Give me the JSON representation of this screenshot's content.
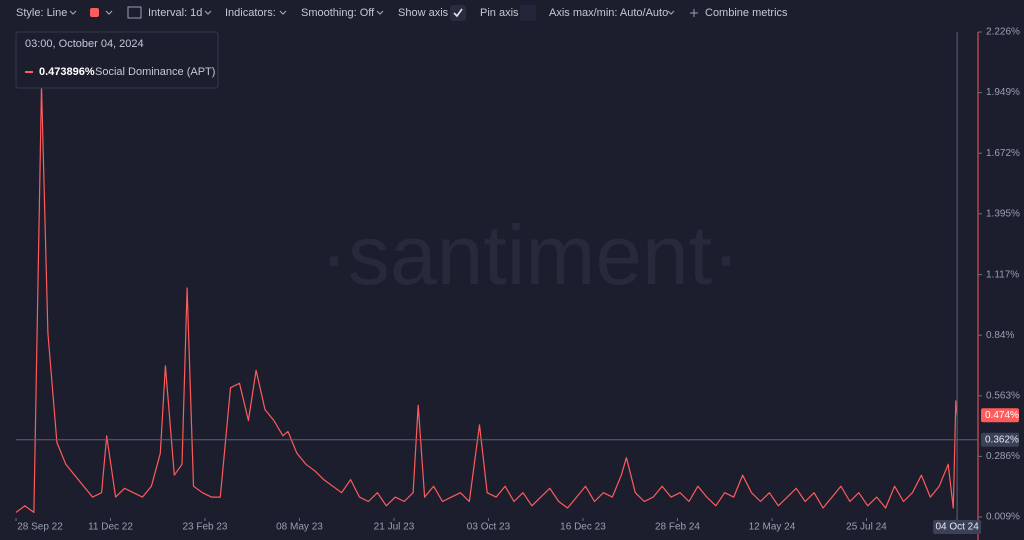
{
  "toolbar": {
    "style": "Style: Line",
    "interval": "Interval: 1d",
    "indicators": "Indicators:",
    "smoothing": "Smoothing: Off",
    "show_axis": "Show axis",
    "pin_axis": "Pin axis",
    "axis_range": "Axis max/min: Auto/Auto",
    "combine": "Combine metrics"
  },
  "chart_data": {
    "type": "line",
    "watermark": "·santiment·",
    "tooltip": {
      "title": "03:00, October 04, 2024",
      "value": 0.473896,
      "label": "0.473896%"
    },
    "x": [
      "2022-09-28",
      "2022-10-05",
      "2022-10-12",
      "2022-10-18",
      "2022-10-23",
      "2022-10-30",
      "2022-11-06",
      "2022-11-13",
      "2022-11-20",
      "2022-11-27",
      "2022-12-04",
      "2022-12-08",
      "2022-12-15",
      "2022-12-22",
      "2022-12-29",
      "2023-01-05",
      "2023-01-12",
      "2023-01-19",
      "2023-01-23",
      "2023-01-30",
      "2023-02-05",
      "2023-02-09",
      "2023-02-14",
      "2023-02-21",
      "2023-02-28",
      "2023-03-07",
      "2023-03-15",
      "2023-03-22",
      "2023-03-29",
      "2023-04-04",
      "2023-04-11",
      "2023-04-18",
      "2023-04-25",
      "2023-04-29",
      "2023-05-06",
      "2023-05-13",
      "2023-05-20",
      "2023-05-27",
      "2023-06-03",
      "2023-06-10",
      "2023-06-17",
      "2023-06-24",
      "2023-07-01",
      "2023-07-08",
      "2023-07-15",
      "2023-07-22",
      "2023-07-29",
      "2023-08-05",
      "2023-08-09",
      "2023-08-14",
      "2023-08-21",
      "2023-08-28",
      "2023-09-04",
      "2023-09-11",
      "2023-09-18",
      "2023-09-26",
      "2023-10-02",
      "2023-10-09",
      "2023-10-16",
      "2023-10-23",
      "2023-10-30",
      "2023-11-06",
      "2023-11-13",
      "2023-11-20",
      "2023-11-27",
      "2023-12-04",
      "2023-12-11",
      "2023-12-18",
      "2023-12-25",
      "2024-01-01",
      "2024-01-08",
      "2024-01-15",
      "2024-01-19",
      "2024-01-26",
      "2024-02-02",
      "2024-02-09",
      "2024-02-16",
      "2024-02-23",
      "2024-03-01",
      "2024-03-08",
      "2024-03-15",
      "2024-03-22",
      "2024-03-29",
      "2024-04-05",
      "2024-04-12",
      "2024-04-19",
      "2024-04-26",
      "2024-05-03",
      "2024-05-10",
      "2024-05-17",
      "2024-05-24",
      "2024-05-31",
      "2024-06-07",
      "2024-06-14",
      "2024-06-21",
      "2024-06-28",
      "2024-07-05",
      "2024-07-12",
      "2024-07-19",
      "2024-07-26",
      "2024-08-02",
      "2024-08-09",
      "2024-08-16",
      "2024-08-23",
      "2024-08-30",
      "2024-09-06",
      "2024-09-13",
      "2024-09-20",
      "2024-09-27",
      "2024-10-01",
      "2024-10-03",
      "2024-10-04"
    ],
    "series": [
      {
        "name": "Social Dominance (APT)",
        "color": "#ff5b5b",
        "values": [
          0.03,
          0.06,
          0.03,
          1.98,
          0.85,
          0.35,
          0.25,
          0.2,
          0.15,
          0.1,
          0.12,
          0.38,
          0.1,
          0.14,
          0.12,
          0.1,
          0.15,
          0.3,
          0.7,
          0.2,
          0.25,
          1.056,
          0.15,
          0.12,
          0.1,
          0.1,
          0.6,
          0.62,
          0.45,
          0.68,
          0.5,
          0.45,
          0.38,
          0.4,
          0.3,
          0.25,
          0.22,
          0.18,
          0.15,
          0.12,
          0.18,
          0.1,
          0.08,
          0.12,
          0.06,
          0.1,
          0.08,
          0.12,
          0.52,
          0.1,
          0.15,
          0.08,
          0.1,
          0.12,
          0.08,
          0.43,
          0.12,
          0.1,
          0.15,
          0.08,
          0.12,
          0.06,
          0.1,
          0.14,
          0.08,
          0.05,
          0.1,
          0.15,
          0.08,
          0.12,
          0.1,
          0.2,
          0.28,
          0.12,
          0.08,
          0.1,
          0.15,
          0.1,
          0.12,
          0.08,
          0.15,
          0.1,
          0.06,
          0.12,
          0.1,
          0.2,
          0.12,
          0.08,
          0.12,
          0.06,
          0.1,
          0.14,
          0.08,
          0.12,
          0.05,
          0.1,
          0.15,
          0.08,
          0.12,
          0.06,
          0.1,
          0.05,
          0.15,
          0.08,
          0.12,
          0.2,
          0.1,
          0.15,
          0.25,
          0.05,
          0.54,
          0.473896
        ]
      }
    ],
    "last_label": {
      "value": 0.473896,
      "label": "0.474%"
    },
    "price_line": {
      "value": 0.362,
      "label": "0.362%"
    },
    "xlim": [
      "2022-09-28",
      "2024-10-18"
    ],
    "xticks": [
      {
        "value": "2022-09-28",
        "label": "28 Sep 22"
      },
      {
        "value": "2022-12-11",
        "label": "11 Dec 22"
      },
      {
        "value": "2023-02-23",
        "label": "23 Feb 23"
      },
      {
        "value": "2023-05-08",
        "label": "08 May 23"
      },
      {
        "value": "2023-07-21",
        "label": "21 Jul 23"
      },
      {
        "value": "2023-10-03",
        "label": "03 Oct 23"
      },
      {
        "value": "2023-12-16",
        "label": "16 Dec 23"
      },
      {
        "value": "2024-02-28",
        "label": "28 Feb 24"
      },
      {
        "value": "2024-05-12",
        "label": "12 May 24"
      },
      {
        "value": "2024-07-25",
        "label": "25 Jul 24"
      },
      {
        "value": "2024-10-04",
        "label": "04 Oct 24"
      }
    ],
    "ylim": [
      0.009,
      2.226
    ],
    "yticks": [
      {
        "value": 0.009,
        "label": "0.009%"
      },
      {
        "value": 0.286,
        "label": "0.286%"
      },
      {
        "value": 0.563,
        "label": "0.563%"
      },
      {
        "value": 0.84,
        "label": "0.84%"
      },
      {
        "value": 1.117,
        "label": "1.117%"
      },
      {
        "value": 1.395,
        "label": "1.395%"
      },
      {
        "value": 1.672,
        "label": "1.672%"
      },
      {
        "value": 1.949,
        "label": "1.949%"
      },
      {
        "value": 2.226,
        "label": "2.226%"
      }
    ]
  }
}
